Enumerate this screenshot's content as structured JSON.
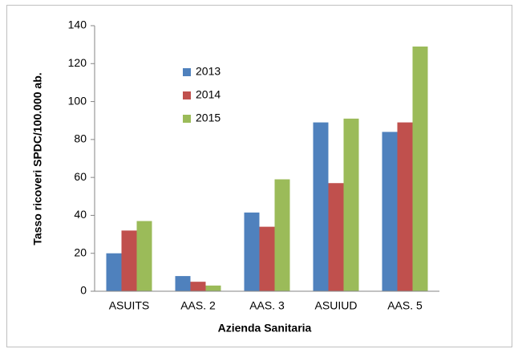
{
  "chart_data": {
    "type": "bar",
    "x_label": "Azienda Sanitaria",
    "y_label": "Tasso ricoveri SPDC/100.000 ab.",
    "categories": [
      "ASUITS",
      "AAS. 2",
      "AAS. 3",
      "ASUIUD",
      "AAS. 5"
    ],
    "series": [
      {
        "name": "2013",
        "color": "#4f81bd",
        "values": [
          20,
          8,
          41.5,
          89,
          84
        ]
      },
      {
        "name": "2014",
        "color": "#c0504d",
        "values": [
          32,
          5,
          34,
          57,
          89
        ]
      },
      {
        "name": "2015",
        "color": "#9bbb59",
        "values": [
          37,
          3,
          59,
          91,
          129
        ]
      }
    ],
    "ylim": [
      0,
      140
    ],
    "yticks": [
      0,
      20,
      40,
      60,
      80,
      100,
      120,
      140
    ],
    "grid": false,
    "legend": "upper left"
  }
}
